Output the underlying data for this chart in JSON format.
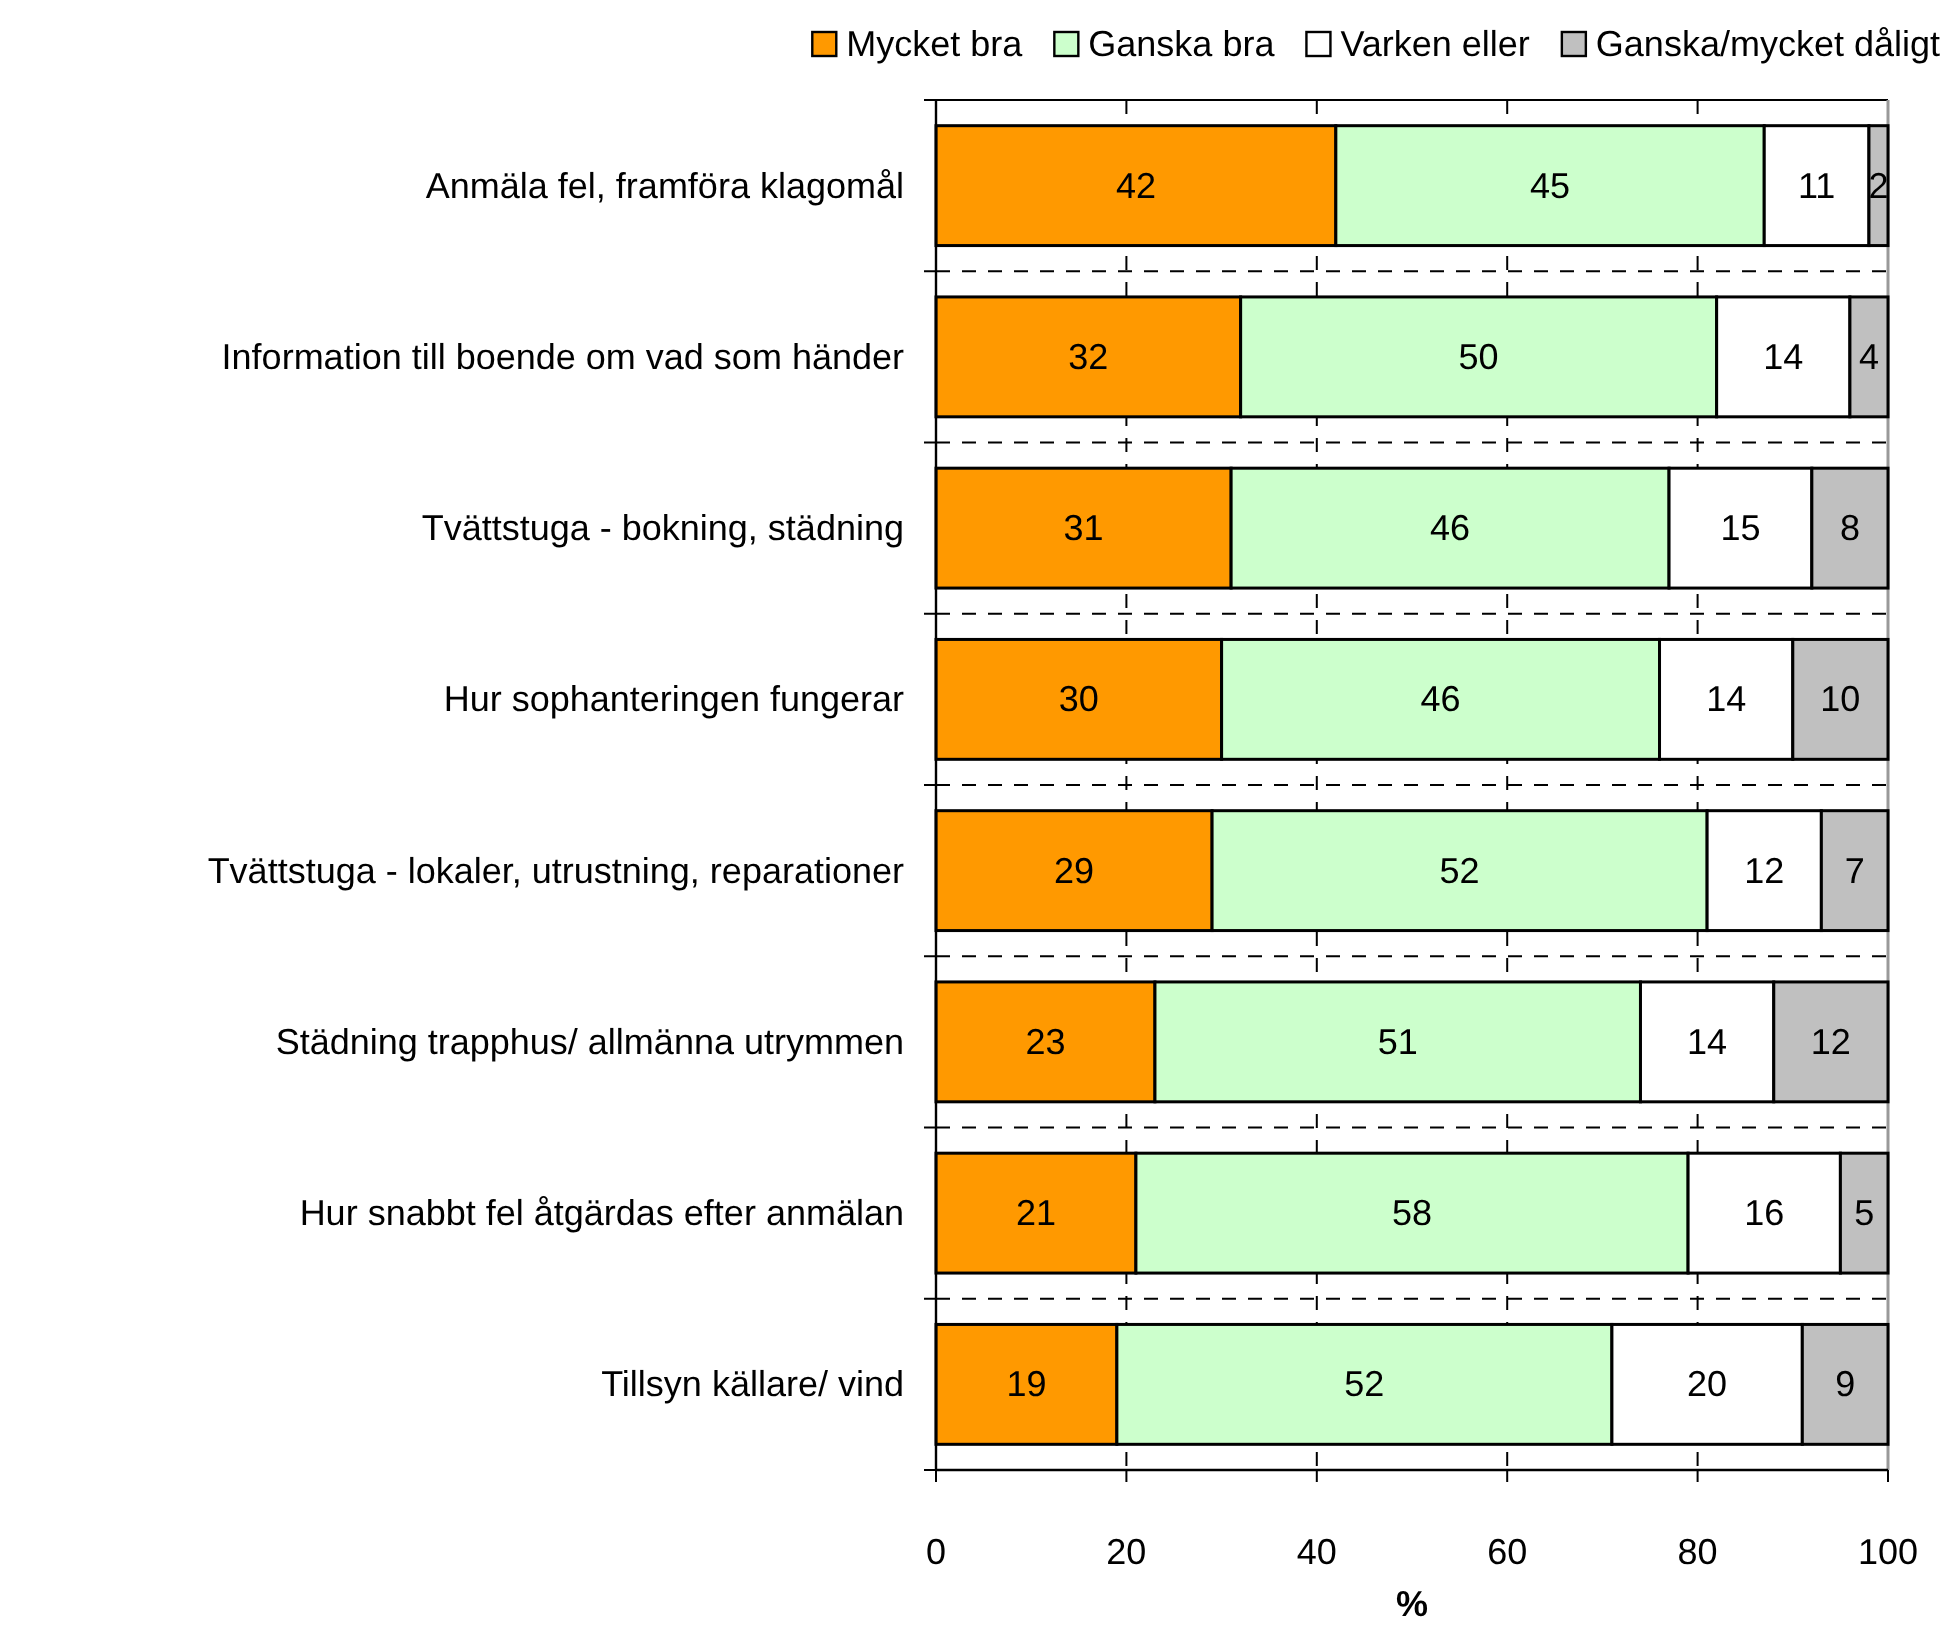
{
  "chart_data": {
    "type": "bar",
    "orientation": "horizontal",
    "stacked": true,
    "categories": [
      "Anmäla fel, framföra klagomål",
      "Information till boende om vad som händer",
      "Tvättstuga - bokning, städning",
      "Hur sophanteringen fungerar",
      "Tvättstuga - lokaler, utrustning, reparationer",
      "Städning trapphus/ allmänna utrymmen",
      "Hur snabbt fel åtgärdas efter anmälan",
      "Tillsyn källare/ vind"
    ],
    "series": [
      {
        "name": "Mycket bra",
        "color": "#ff9900",
        "values": [
          42,
          32,
          31,
          30,
          29,
          23,
          21,
          19
        ]
      },
      {
        "name": "Ganska bra",
        "color": "#ccffcc",
        "values": [
          45,
          50,
          46,
          46,
          52,
          51,
          58,
          52
        ]
      },
      {
        "name": "Varken eller",
        "color": "#ffffff",
        "values": [
          11,
          14,
          15,
          14,
          12,
          14,
          16,
          20
        ]
      },
      {
        "name": "Ganska/mycket dåligt",
        "color": "#c0c0c0",
        "values": [
          2,
          4,
          8,
          10,
          7,
          12,
          5,
          9
        ]
      }
    ],
    "xlim": [
      0,
      100
    ],
    "xticks": [
      0,
      20,
      40,
      60,
      80,
      100
    ],
    "xlabel": "%",
    "grid": true,
    "legend": "top right",
    "data_labels": true
  }
}
